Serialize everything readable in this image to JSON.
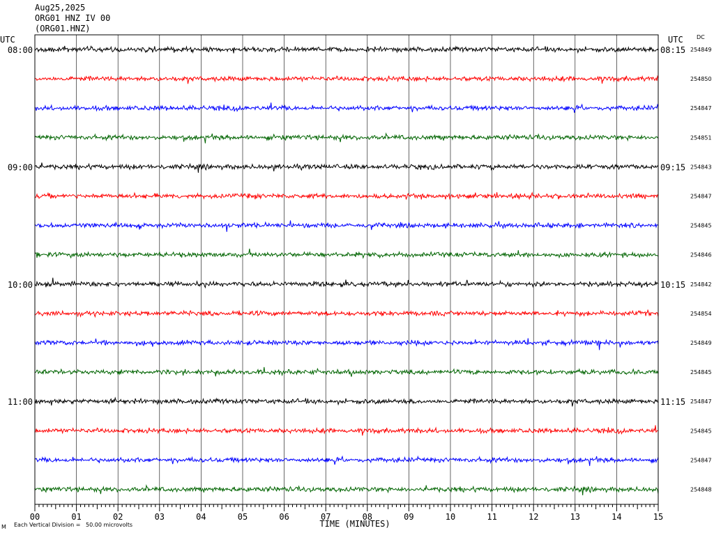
{
  "header": {
    "date": "Aug25,2025",
    "station_line": "ORG01 HNZ IV 00",
    "channel_line": "(ORG01.HNZ)"
  },
  "chart_data": {
    "type": "line",
    "title": "",
    "xlabel": "TIME (MINUTES)",
    "ylabel": "",
    "xlim": [
      0,
      15
    ],
    "x_ticks": [
      "00",
      "01",
      "02",
      "03",
      "04",
      "05",
      "06",
      "07",
      "08",
      "09",
      "10",
      "11",
      "12",
      "13",
      "14",
      "15"
    ],
    "left_axis_label": "UTC",
    "right_axis_label": "UTC",
    "dc_label": "DC",
    "left_time_labels": [
      {
        "row": 0,
        "label": "08:00"
      },
      {
        "row": 4,
        "label": "09:00"
      },
      {
        "row": 8,
        "label": "10:00"
      },
      {
        "row": 12,
        "label": "11:00"
      }
    ],
    "right_time_labels": [
      {
        "row": 0,
        "label": "08:15"
      },
      {
        "row": 4,
        "label": "09:15"
      },
      {
        "row": 8,
        "label": "10:15"
      },
      {
        "row": 12,
        "label": "11:15"
      }
    ],
    "trace_colors": [
      "#000000",
      "#ff0000",
      "#0000ff",
      "#006400"
    ],
    "dc_values": [
      "254849",
      "254850",
      "254847",
      "254851",
      "254843",
      "254847",
      "254845",
      "254846",
      "254842",
      "254854",
      "254849",
      "254845",
      "254847",
      "254845",
      "254847",
      "254848"
    ],
    "footnote": "Each Vertical Division =   50.00 microvolts",
    "footnote_mark": "M"
  }
}
